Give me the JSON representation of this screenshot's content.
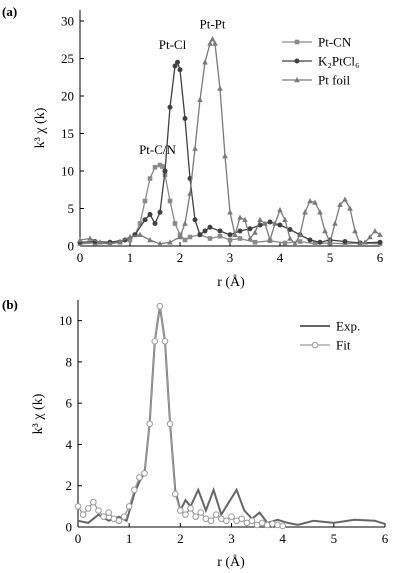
{
  "chart_data": [
    {
      "type": "line",
      "panel_label": "(a)",
      "xlabel": "r (Å)",
      "ylabel": "k³ χ (k)",
      "xlim": [
        0,
        6
      ],
      "ylim": [
        0,
        30
      ],
      "xticks": [
        "0",
        "1",
        "2",
        "3",
        "4",
        "5",
        "6"
      ],
      "yticks": [
        "0",
        "5",
        "10",
        "15",
        "20",
        "25",
        "30"
      ],
      "legend_position": "top-right",
      "annotations": [
        {
          "text": "Pt-C/N",
          "x": 1.55,
          "y": 12.3
        },
        {
          "text": "Pt-Cl",
          "x": 1.85,
          "y": 26.3
        },
        {
          "text": "Pt-Pt",
          "x": 2.65,
          "y": 29.0
        }
      ],
      "series": [
        {
          "name": "Pt-CN",
          "marker": "square",
          "color": "#8a8a8a",
          "x": [
            0,
            0.3,
            0.6,
            0.8,
            1.0,
            1.1,
            1.2,
            1.3,
            1.4,
            1.5,
            1.6,
            1.65,
            1.7,
            1.8,
            1.9,
            2.0,
            2.1,
            2.2,
            2.4,
            2.6,
            2.8,
            3.0,
            3.2,
            3.5,
            3.8,
            4.1,
            4.4,
            4.7,
            5.0,
            5.3,
            5.6,
            6.0
          ],
          "y": [
            0.3,
            0.4,
            0.3,
            0.5,
            0.8,
            1.5,
            3.0,
            6.0,
            9.0,
            10.5,
            10.8,
            10.6,
            9.5,
            6.0,
            3.0,
            1.5,
            0.8,
            1.2,
            1.5,
            1.0,
            1.3,
            0.8,
            1.0,
            0.5,
            0.7,
            0.4,
            0.6,
            0.3,
            0.4,
            0.3,
            0.4,
            0.3
          ]
        },
        {
          "name": "K₂PtCl₆",
          "marker": "circle",
          "color": "#404040",
          "x": [
            0,
            0.3,
            0.6,
            0.9,
            1.1,
            1.3,
            1.4,
            1.5,
            1.6,
            1.7,
            1.8,
            1.9,
            1.95,
            2.0,
            2.1,
            2.2,
            2.3,
            2.4,
            2.5,
            2.6,
            2.8,
            3.0,
            3.2,
            3.4,
            3.6,
            3.8,
            4.0,
            4.2,
            4.4,
            4.6,
            4.8,
            5.0,
            5.3,
            5.6,
            6.0
          ],
          "y": [
            0.5,
            0.6,
            0.5,
            0.8,
            1.5,
            3.5,
            4.2,
            3.0,
            4.5,
            10.0,
            18.5,
            24.0,
            24.5,
            23.5,
            17.0,
            9.0,
            3.5,
            1.5,
            2.0,
            2.5,
            2.0,
            1.5,
            2.0,
            2.3,
            2.8,
            3.2,
            2.8,
            2.2,
            1.5,
            0.8,
            0.5,
            0.8,
            0.6,
            0.4,
            0.5
          ]
        },
        {
          "name": "Pt foil",
          "marker": "triangle",
          "color": "#7a7a7a",
          "x": [
            0,
            0.2,
            0.4,
            0.6,
            0.8,
            1.0,
            1.2,
            1.4,
            1.6,
            1.8,
            2.0,
            2.1,
            2.2,
            2.3,
            2.4,
            2.5,
            2.6,
            2.65,
            2.7,
            2.8,
            2.9,
            3.0,
            3.1,
            3.2,
            3.3,
            3.4,
            3.5,
            3.6,
            3.7,
            3.8,
            3.9,
            4.0,
            4.1,
            4.2,
            4.3,
            4.4,
            4.5,
            4.6,
            4.7,
            4.8,
            4.9,
            5.0,
            5.1,
            5.2,
            5.3,
            5.4,
            5.5,
            5.6,
            5.7,
            5.8,
            5.9,
            6.0
          ],
          "y": [
            0.8,
            1.0,
            0.5,
            0.3,
            0.6,
            1.2,
            1.5,
            0.8,
            0.3,
            0.5,
            1.2,
            3.0,
            7.0,
            13.0,
            19.5,
            24.5,
            27.0,
            27.6,
            27.0,
            21.0,
            12.0,
            4.5,
            1.5,
            3.8,
            3.5,
            1.0,
            1.8,
            3.5,
            3.0,
            0.8,
            3.0,
            4.8,
            3.5,
            1.0,
            0.3,
            1.5,
            4.5,
            6.0,
            5.8,
            4.5,
            2.0,
            0.5,
            3.0,
            5.5,
            6.2,
            5.0,
            2.0,
            0.3,
            0.5,
            1.2,
            2.0,
            1.5
          ]
        }
      ]
    },
    {
      "type": "line",
      "panel_label": "(b)",
      "xlabel": "r (Å)",
      "ylabel": "k³ χ (k)",
      "xlim": [
        0,
        6
      ],
      "ylim": [
        0,
        11
      ],
      "xticks": [
        "0",
        "1",
        "2",
        "3",
        "4",
        "5",
        "6"
      ],
      "yticks": [
        "0",
        "2",
        "4",
        "6",
        "8",
        "10"
      ],
      "legend_position": "top-right",
      "series": [
        {
          "name": "Exp.",
          "marker": "none",
          "color": "#666666",
          "x": [
            0,
            0.2,
            0.4,
            0.6,
            0.8,
            0.95,
            1.1,
            1.2,
            1.3,
            1.4,
            1.5,
            1.6,
            1.7,
            1.8,
            1.9,
            2.0,
            2.1,
            2.2,
            2.35,
            2.5,
            2.65,
            2.8,
            2.95,
            3.1,
            3.25,
            3.4,
            3.55,
            3.7,
            3.9,
            4.1,
            4.3,
            4.6,
            5.0,
            5.4,
            5.8,
            6.0
          ],
          "y": [
            0.3,
            0.2,
            0.6,
            0.3,
            0.5,
            0.3,
            1.6,
            2.2,
            2.6,
            5.0,
            9.0,
            10.7,
            9.0,
            5.0,
            1.8,
            0.8,
            1.3,
            1.0,
            1.8,
            0.8,
            1.8,
            0.6,
            1.2,
            1.8,
            0.8,
            0.4,
            0.7,
            0.2,
            0.35,
            0.2,
            0.1,
            0.3,
            0.2,
            0.35,
            0.3,
            0.15
          ]
        },
        {
          "name": "Fit",
          "marker": "open-circle",
          "color": "#9a9a9a",
          "x": [
            0,
            0.1,
            0.2,
            0.3,
            0.4,
            0.5,
            0.6,
            0.7,
            0.8,
            0.9,
            1.0,
            1.1,
            1.2,
            1.3,
            1.4,
            1.5,
            1.6,
            1.7,
            1.8,
            1.9,
            2.0,
            2.1,
            2.2,
            2.3,
            2.4,
            2.5,
            2.6,
            2.7,
            2.8,
            2.9,
            3.0,
            3.1,
            3.2,
            3.3,
            3.4,
            3.5,
            3.6,
            3.7,
            3.8,
            3.9,
            4.0
          ],
          "y": [
            1.0,
            0.6,
            0.9,
            1.2,
            0.8,
            0.5,
            0.7,
            0.4,
            0.3,
            0.5,
            1.0,
            1.8,
            2.4,
            2.6,
            5.0,
            9.0,
            10.7,
            9.0,
            5.0,
            1.6,
            0.8,
            0.6,
            0.9,
            0.5,
            0.7,
            0.4,
            0.3,
            0.6,
            0.4,
            0.3,
            0.5,
            0.3,
            0.4,
            0.2,
            0.3,
            0.1,
            0.2,
            0.1,
            0.15,
            0.1,
            0.05
          ]
        }
      ]
    }
  ]
}
